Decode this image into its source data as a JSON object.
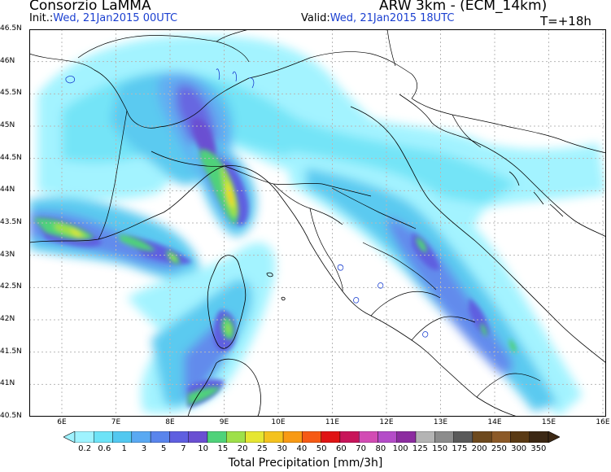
{
  "header": {
    "organization": "Consorzio LaMMA",
    "model": "ARW 3km - (ECM_14km)",
    "init_label": "Init.:",
    "init_value": "Wed, 21Jan2015 00UTC",
    "valid_label": "Valid:",
    "valid_value": "Wed, 21Jan2015 18UTC",
    "forecast_step": "T=+18h"
  },
  "map": {
    "lat_labels": [
      "46.5N",
      "46N",
      "45.5N",
      "45N",
      "44.5N",
      "44N",
      "43.5N",
      "43N",
      "42.5N",
      "42N",
      "41.5N",
      "41N",
      "40.5N"
    ],
    "lon_labels": [
      "6E",
      "7E",
      "8E",
      "9E",
      "10E",
      "11E",
      "12E",
      "13E",
      "14E",
      "15E",
      "16E"
    ],
    "grid_color": "#b8b8b8",
    "coast_color": "#000000",
    "border_color": "#000000"
  },
  "legend": {
    "title": "Total Precipitation [mm/3h]",
    "levels": [
      "0.2",
      "0.6",
      "1",
      "3",
      "5",
      "7",
      "10",
      "15",
      "20",
      "25",
      "30",
      "40",
      "50",
      "60",
      "70",
      "80",
      "100",
      "125",
      "150",
      "175",
      "200",
      "250",
      "300",
      "350"
    ],
    "colors": [
      "#9ff3ff",
      "#6de3f7",
      "#52c8f0",
      "#5aa9f2",
      "#5a85ec",
      "#5f5fe0",
      "#6a4fd2",
      "#4fd27a",
      "#9ee04a",
      "#e6e632",
      "#f4c21e",
      "#f89a14",
      "#f65a14",
      "#e01414",
      "#c8145a",
      "#d24cb4",
      "#b44cc8",
      "#8c2ca0",
      "#b4b4b4",
      "#8c8c8c",
      "#5a5a5a",
      "#6e4a1e",
      "#8c5a28",
      "#5a3a14",
      "#3c2814"
    ]
  }
}
